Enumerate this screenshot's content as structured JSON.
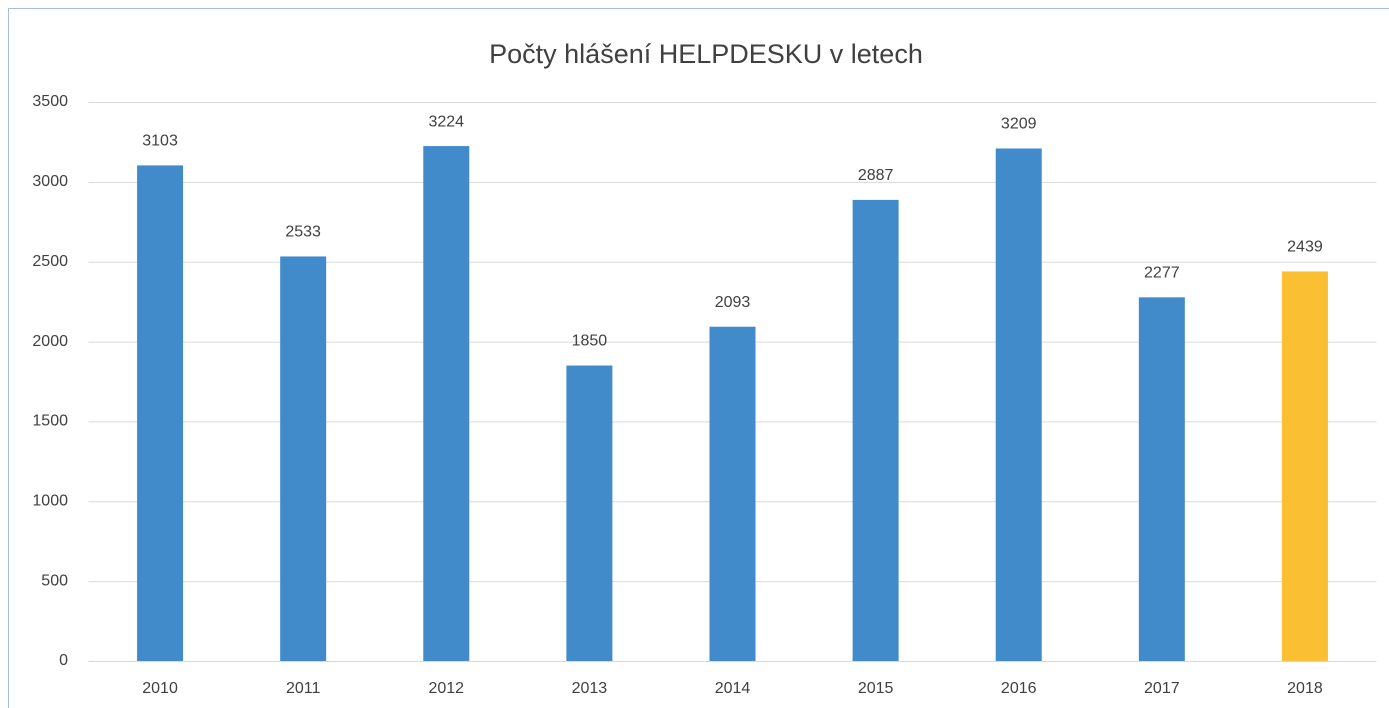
{
  "chart_data": {
    "type": "bar",
    "title": "Počty hlášení HELPDESKU v letech",
    "categories": [
      "2010",
      "2011",
      "2012",
      "2013",
      "2014",
      "2015",
      "2016",
      "2017",
      "2018"
    ],
    "values": [
      3103,
      2533,
      3224,
      1850,
      2093,
      2887,
      3209,
      2277,
      2439
    ],
    "colors": [
      "#428bca",
      "#428bca",
      "#428bca",
      "#428bca",
      "#428bca",
      "#428bca",
      "#428bca",
      "#428bca",
      "#fbbf33"
    ],
    "ylim": [
      0,
      3500
    ],
    "yticks": [
      0,
      500,
      1000,
      1500,
      2000,
      2500,
      3000,
      3500
    ],
    "grid": true,
    "data_labels": true
  }
}
